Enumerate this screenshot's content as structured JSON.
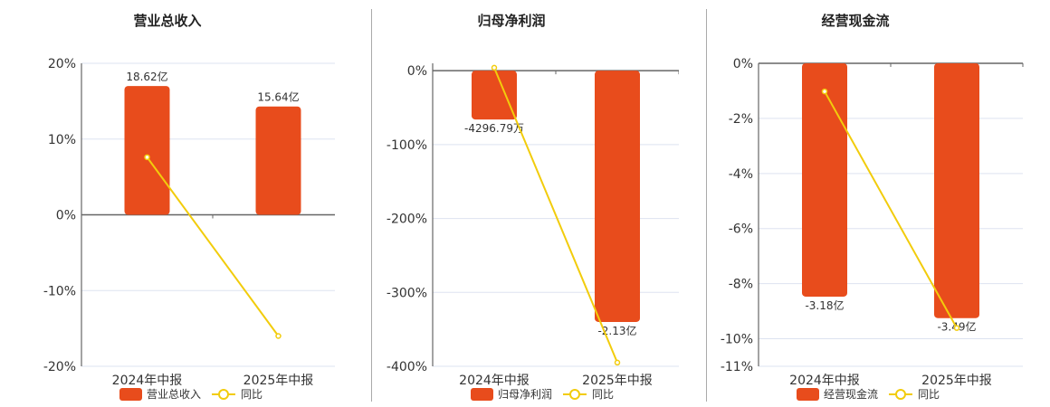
{
  "colors": {
    "bar": "#E84C1C",
    "line": "#F2CC0C",
    "grid": "#dde3f0",
    "axis": "#666"
  },
  "chart_data": [
    {
      "type": "bar",
      "title": "营业总收入",
      "categories": [
        "2024年中报",
        "2025年中报"
      ],
      "bar_series": {
        "name": "营业总收入",
        "values_axis": [
          17,
          14.3
        ],
        "labels": [
          "18.62亿",
          "15.64亿"
        ]
      },
      "line_series": {
        "name": "同比",
        "values": [
          7.6,
          -16
        ]
      },
      "yticks": [
        "20%",
        "10%",
        "0%",
        "-10%",
        "-20%"
      ],
      "ytick_values": [
        20,
        10,
        0,
        -10,
        -20
      ],
      "ylim": [
        -20,
        20
      ]
    },
    {
      "type": "bar",
      "title": "归母净利润",
      "categories": [
        "2024年中报",
        "2025年中报"
      ],
      "bar_series": {
        "name": "归母净利润",
        "values_axis": [
          -66,
          -340
        ],
        "labels": [
          "-4296.79万",
          "-2.13亿"
        ]
      },
      "line_series": {
        "name": "同比",
        "values": [
          4,
          -395
        ]
      },
      "yticks": [
        "0%",
        "-100%",
        "-200%",
        "-300%",
        "-400%"
      ],
      "ytick_values": [
        0,
        -100,
        -200,
        -300,
        -400
      ],
      "ylim": [
        -400,
        10
      ]
    },
    {
      "type": "bar",
      "title": "经营现金流",
      "categories": [
        "2024年中报",
        "2025年中报"
      ],
      "bar_series": {
        "name": "经营现金流",
        "values_axis": [
          -8.47,
          -9.25
        ],
        "labels": [
          "-3.18亿",
          "-3.49亿"
        ]
      },
      "line_series": {
        "name": "同比",
        "values": [
          -1.02,
          -9.61
        ]
      },
      "yticks": [
        "0%",
        "-2%",
        "-4%",
        "-6%",
        "-8%",
        "-10%",
        "-11%"
      ],
      "ytick_values": [
        0,
        -2,
        -4,
        -6,
        -8,
        -10,
        -11
      ],
      "ylim": [
        -11,
        0
      ]
    }
  ]
}
